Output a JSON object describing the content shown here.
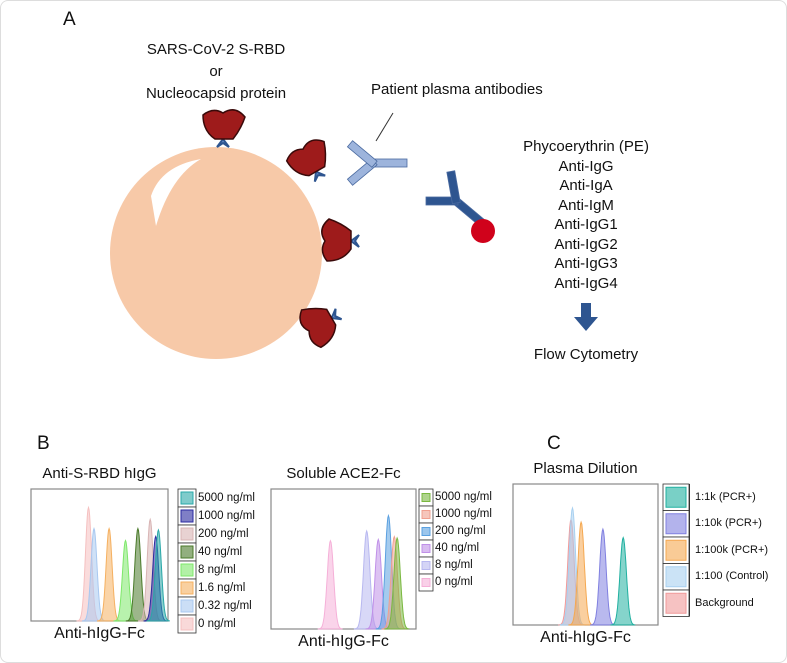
{
  "panel_a": {
    "label": "A",
    "antigen_line1": "SARS-CoV-2 S-RBD",
    "antigen_line2": "or",
    "antigen_line3": "Nucleocapsid protein",
    "antibodies_label": "Patient plasma antibodies",
    "secondary": [
      "Phycoerythrin (PE)",
      "Anti-IgG",
      "Anti-IgA",
      "Anti-IgM",
      "Anti-IgG1",
      "Anti-IgG2",
      "Anti-IgG3",
      "Anti-IgG4"
    ],
    "readout": "Flow Cytometry",
    "colors": {
      "bead": "#f7c9a8",
      "antigen": "#9e1b1b",
      "plasma_ab": "#9db4dc",
      "secondary_ab": "#2e5590",
      "pe": "#d0021b"
    }
  },
  "panel_b_label": "B",
  "panel_c_label": "C",
  "chart_data": [
    {
      "type": "histogram",
      "title": "Anti-S-RBD hIgG",
      "xlabel": "Anti-hIgG-Fc",
      "x_range": [
        0,
        100
      ],
      "series": [
        {
          "name": "5000 ng/ml",
          "peak_x": 93,
          "peak_height": 0.69,
          "color": "#2aa8a8"
        },
        {
          "name": "1000 ng/ml",
          "peak_x": 91,
          "peak_height": 0.64,
          "color": "#2a2aa0"
        },
        {
          "name": "200 ng/ml",
          "peak_x": 87,
          "peak_height": 0.77,
          "color": "#d8b4b4"
        },
        {
          "name": "40 ng/ml",
          "peak_x": 78,
          "peak_height": 0.7,
          "color": "#4a7a2a"
        },
        {
          "name": "8 ng/ml",
          "peak_x": 69,
          "peak_height": 0.61,
          "color": "#7ee86a"
        },
        {
          "name": "1.6 ng/ml",
          "peak_x": 57,
          "peak_height": 0.7,
          "color": "#f5b060"
        },
        {
          "name": "0.32 ng/ml",
          "peak_x": 46,
          "peak_height": 0.7,
          "color": "#a8c8f0"
        },
        {
          "name": "0 ng/ml",
          "peak_x": 42,
          "peak_height": 0.86,
          "color": "#f5c0c0"
        }
      ]
    },
    {
      "type": "histogram",
      "title": "Soluble ACE2-Fc",
      "xlabel": "Anti-hIgG-Fc",
      "x_range": [
        0,
        100
      ],
      "series": [
        {
          "name": "5000 ng/ml",
          "peak_x": 87,
          "peak_height": 0.65,
          "color": "#7ab840"
        },
        {
          "name": "1000 ng/ml",
          "peak_x": 85,
          "peak_height": 0.66,
          "color": "#f0a090"
        },
        {
          "name": "200 ng/ml",
          "peak_x": 81,
          "peak_height": 0.81,
          "color": "#5aa0e0"
        },
        {
          "name": "40 ng/ml",
          "peak_x": 74,
          "peak_height": 0.64,
          "color": "#c090e8"
        },
        {
          "name": "8 ng/ml",
          "peak_x": 66,
          "peak_height": 0.7,
          "color": "#b8b8f0"
        },
        {
          "name": "0 ng/ml",
          "peak_x": 41,
          "peak_height": 0.63,
          "color": "#f5b0d8"
        }
      ]
    },
    {
      "type": "histogram",
      "title": "Plasma Dilution",
      "xlabel": "Anti-hIgG-Fc",
      "x_range": [
        0,
        100
      ],
      "series": [
        {
          "name": "1:1k (PCR+)",
          "peak_x": 76,
          "peak_height": 0.62,
          "color": "#20b0a0"
        },
        {
          "name": "1:10k (PCR+)",
          "peak_x": 62,
          "peak_height": 0.68,
          "color": "#8080e0"
        },
        {
          "name": "1:100k (PCR+)",
          "peak_x": 47,
          "peak_height": 0.73,
          "color": "#f5a850"
        },
        {
          "name": "1:100 (Control)",
          "peak_x": 41,
          "peak_height": 0.83,
          "color": "#a8d0f0"
        },
        {
          "name": "Background",
          "peak_x": 40,
          "peak_height": 0.75,
          "color": "#f09a9a"
        }
      ]
    }
  ]
}
